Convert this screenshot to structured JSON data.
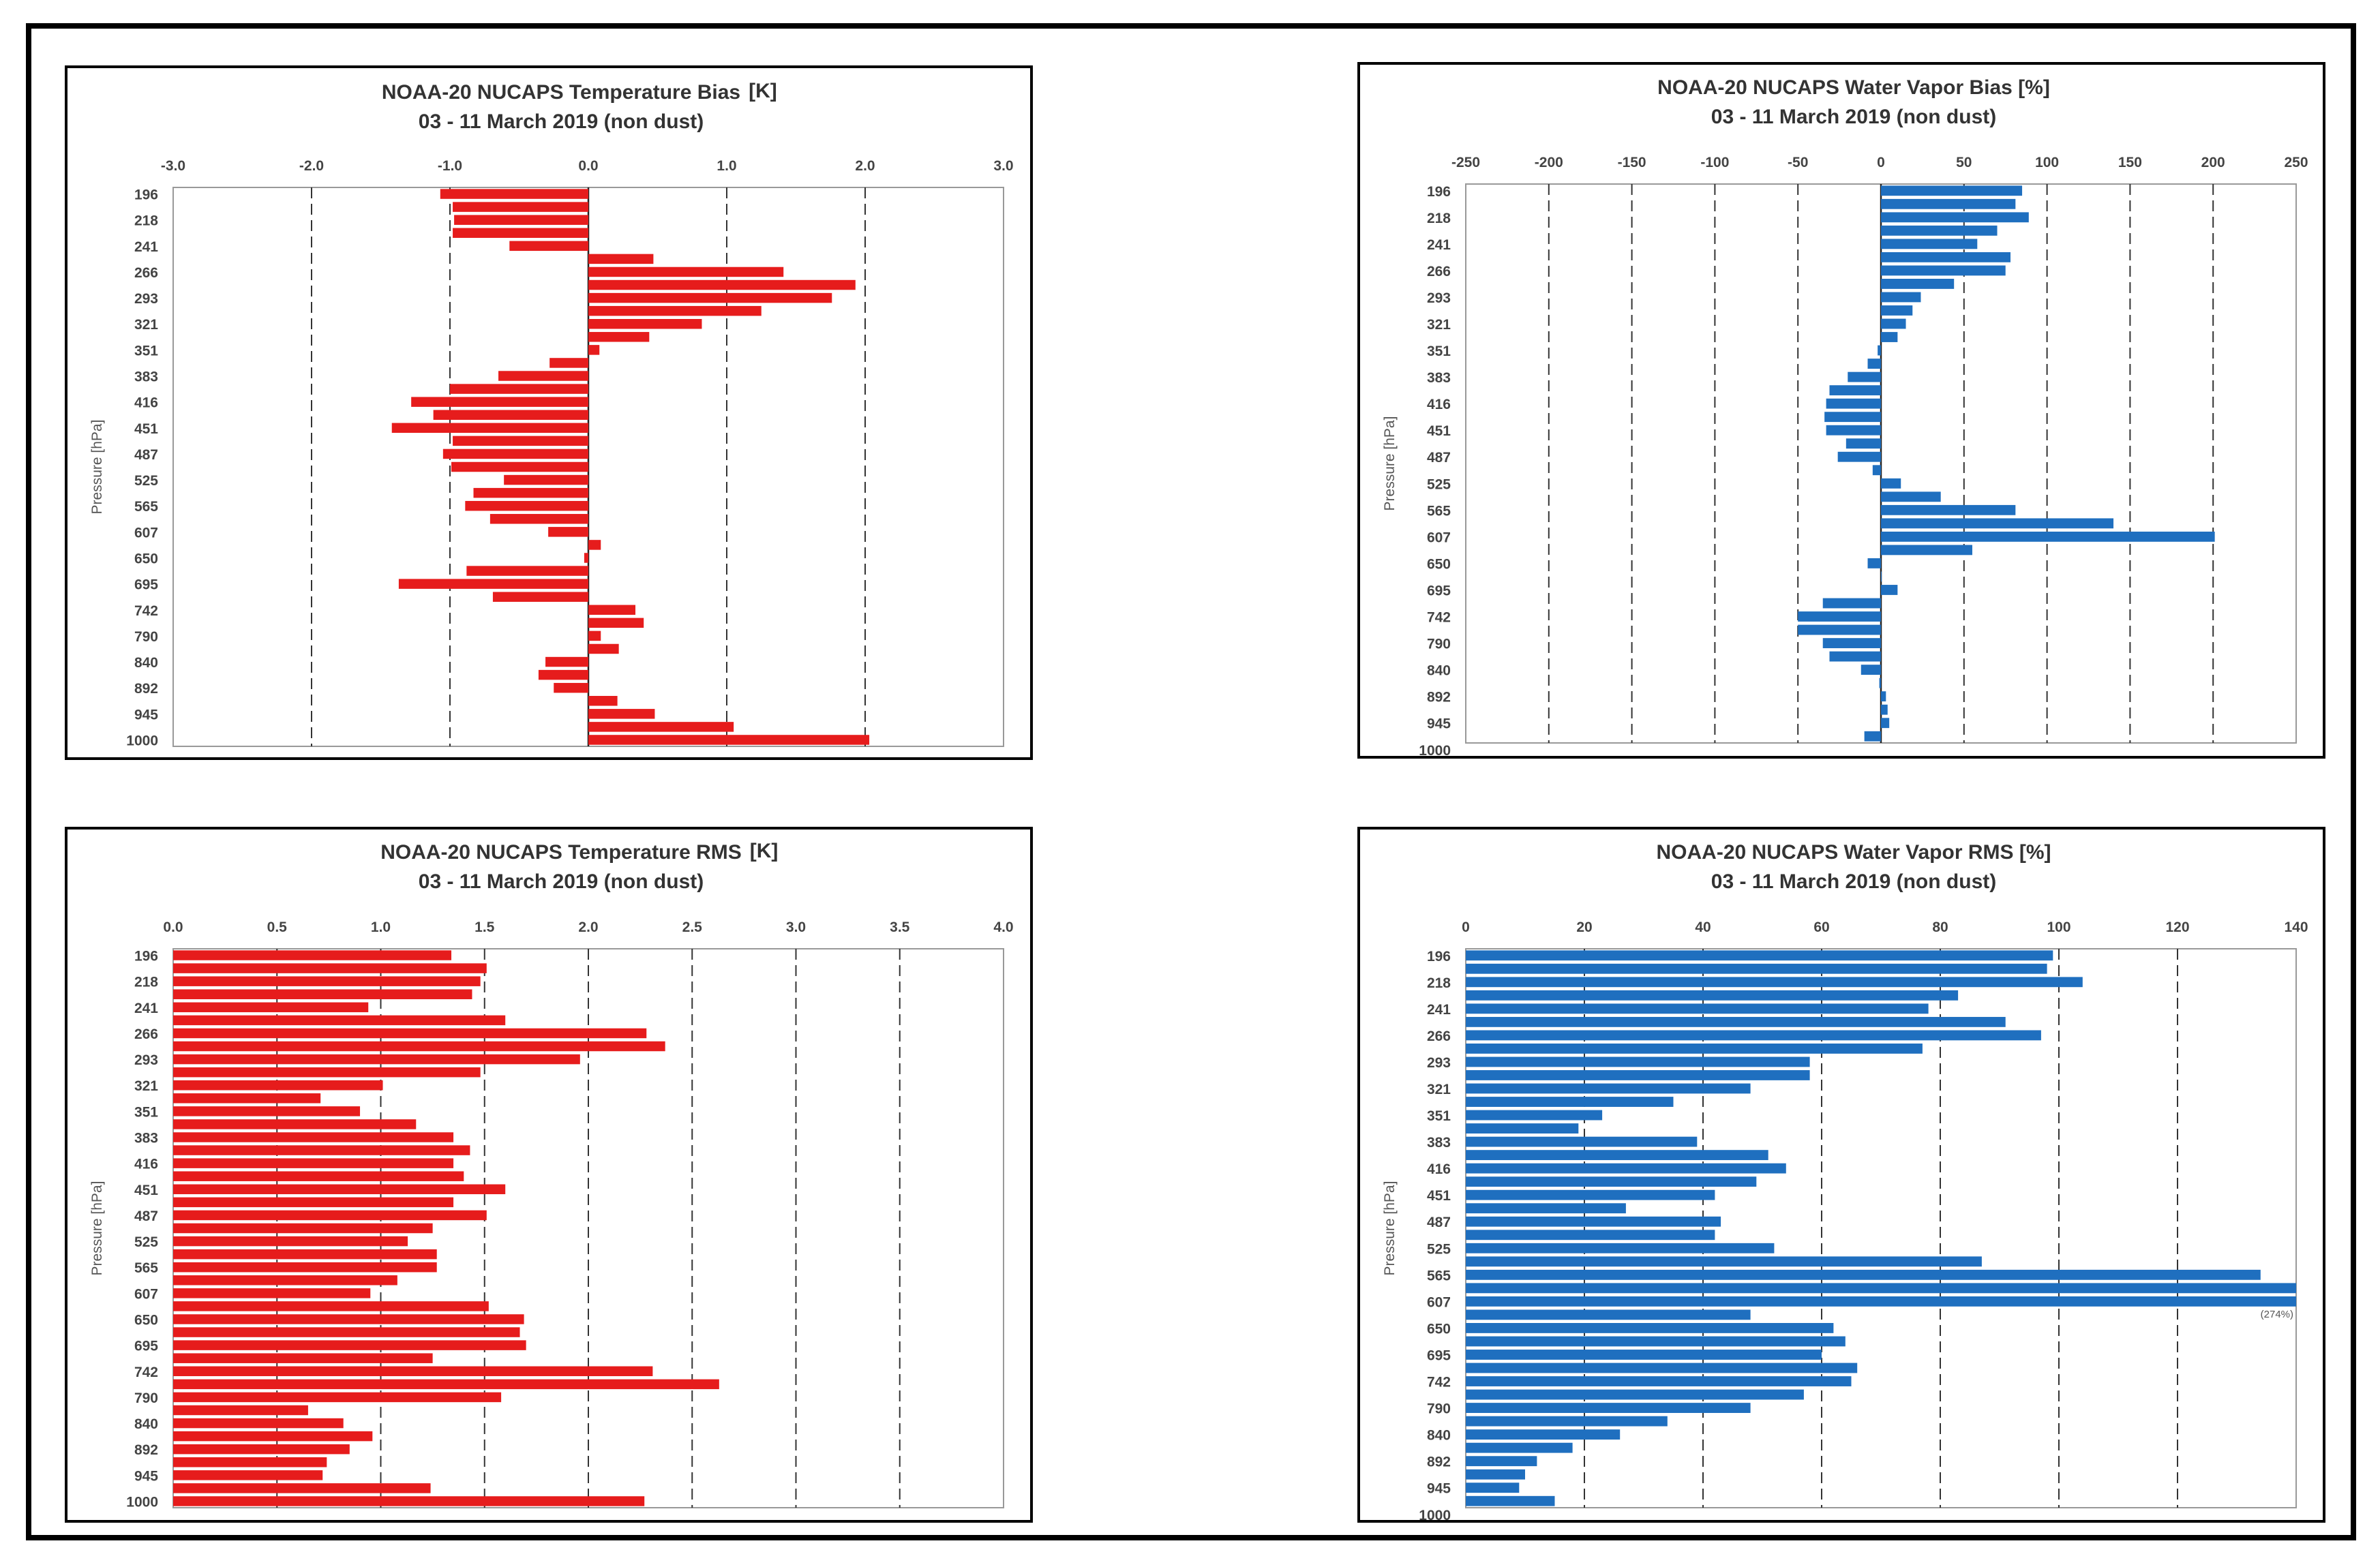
{
  "charts": [
    {
      "title": "NOAA-20 NUCAPS Temperature Bias",
      "title_unit": "[K]",
      "subtitle": "03 - 11 March 2019 (non dust)",
      "color": "#e61c1c"
    },
    {
      "title": "NOAA-20 NUCAPS Water Vapor Bias [%]",
      "title_unit": "",
      "subtitle": "03 - 11 March 2019 (non dust)",
      "color": "#1f6fbf"
    },
    {
      "title": "NOAA-20 NUCAPS Temperature RMS",
      "title_unit": "[K]",
      "subtitle": "03 - 11 March 2019 (non dust)",
      "color": "#e61c1c"
    },
    {
      "title": "NOAA-20 NUCAPS Water Vapor RMS [%]",
      "title_unit": "",
      "subtitle": "03 - 11 March 2019 (non dust)",
      "color": "#1f6fbf"
    }
  ],
  "chart_data": [
    {
      "type": "bar",
      "orientation": "horizontal",
      "title": "NOAA-20 NUCAPS Temperature Bias [K]",
      "subtitle": "03 - 11 March 2019 (non dust)",
      "ylabel": "Pressure [hPa]",
      "xlabel": "",
      "xlim": [
        -3.0,
        3.0
      ],
      "xticks": [
        "-3.0",
        "-2.0",
        "-1.0",
        "0.0",
        "1.0",
        "2.0",
        "3.0"
      ],
      "ytick_labels": [
        "196",
        "218",
        "241",
        "266",
        "293",
        "321",
        "351",
        "383",
        "416",
        "451",
        "487",
        "525",
        "565",
        "607",
        "650",
        "695",
        "742",
        "790",
        "840",
        "892",
        "945",
        "1000"
      ],
      "grid": "vertical dashed",
      "color": "#e61c1c",
      "values": [
        -1.07,
        -0.98,
        -0.97,
        -0.98,
        -0.57,
        0.47,
        1.41,
        1.93,
        1.76,
        1.25,
        0.82,
        0.44,
        0.08,
        -0.28,
        -0.65,
        -1.0,
        -1.28,
        -1.12,
        -1.42,
        -0.98,
        -1.05,
        -0.99,
        -0.61,
        -0.83,
        -0.89,
        -0.71,
        -0.29,
        0.09,
        -0.03,
        -0.88,
        -1.37,
        -0.69,
        0.34,
        0.4,
        0.09,
        0.22,
        -0.31,
        -0.36,
        -0.25,
        0.21,
        0.48,
        1.05,
        2.03
      ]
    },
    {
      "type": "bar",
      "orientation": "horizontal",
      "title": "NOAA-20 NUCAPS Water Vapor Bias [%]",
      "subtitle": "03 - 11 March 2019 (non dust)",
      "ylabel": "Pressure [hPa]",
      "xlabel": "",
      "xlim": [
        -250,
        250
      ],
      "xticks": [
        "-250",
        "-200",
        "-150",
        "-100",
        "-50",
        "0",
        "50",
        "100",
        "150",
        "200",
        "250"
      ],
      "ytick_labels": [
        "196",
        "218",
        "241",
        "266",
        "293",
        "321",
        "351",
        "383",
        "416",
        "451",
        "487",
        "525",
        "565",
        "607",
        "650",
        "695",
        "742",
        "790",
        "840",
        "892",
        "945",
        "1000"
      ],
      "grid": "vertical dashed",
      "color": "#1f6fbf",
      "values": [
        85,
        81,
        89,
        70,
        58,
        78,
        75,
        44,
        24,
        19,
        15,
        10,
        -2,
        -8,
        -20,
        -31,
        -33,
        -34,
        -33,
        -21,
        -26,
        -5,
        12,
        36,
        81,
        140,
        201,
        55,
        -8,
        0,
        10,
        -35,
        -50,
        -50,
        -35,
        -31,
        -12,
        -1,
        3,
        4,
        5,
        -10
      ]
    },
    {
      "type": "bar",
      "orientation": "horizontal",
      "title": "NOAA-20 NUCAPS Temperature RMS [K]",
      "subtitle": "03 - 11 March 2019 (non dust)",
      "ylabel": "Pressure [hPa]",
      "xlabel": "",
      "xlim": [
        0.0,
        4.0
      ],
      "xticks": [
        "0.0",
        "0.5",
        "1.0",
        "1.5",
        "2.0",
        "2.5",
        "3.0",
        "3.5",
        "4.0"
      ],
      "ytick_labels": [
        "196",
        "218",
        "241",
        "266",
        "293",
        "321",
        "351",
        "383",
        "416",
        "451",
        "487",
        "525",
        "565",
        "607",
        "650",
        "695",
        "742",
        "790",
        "840",
        "892",
        "945",
        "1000"
      ],
      "grid": "vertical dashed",
      "color": "#e61c1c",
      "values": [
        1.34,
        1.51,
        1.48,
        1.44,
        0.94,
        1.6,
        2.28,
        2.37,
        1.96,
        1.48,
        1.01,
        0.71,
        0.9,
        1.17,
        1.35,
        1.43,
        1.35,
        1.4,
        1.6,
        1.35,
        1.51,
        1.25,
        1.13,
        1.27,
        1.27,
        1.08,
        0.95,
        1.52,
        1.69,
        1.67,
        1.7,
        1.25,
        2.31,
        2.63,
        1.58,
        0.65,
        0.82,
        0.96,
        0.85,
        0.74,
        0.72,
        1.24,
        2.27
      ]
    },
    {
      "type": "bar",
      "orientation": "horizontal",
      "title": "NOAA-20 NUCAPS Water Vapor RMS [%]",
      "subtitle": "03 - 11 March 2019 (non dust)",
      "ylabel": "Pressure [hPa]",
      "xlabel": "",
      "xlim": [
        0,
        140
      ],
      "xticks": [
        "0",
        "20",
        "40",
        "60",
        "80",
        "100",
        "120",
        "140"
      ],
      "ytick_labels": [
        "196",
        "218",
        "241",
        "266",
        "293",
        "321",
        "351",
        "383",
        "416",
        "451",
        "487",
        "525",
        "565",
        "607",
        "650",
        "695",
        "742",
        "790",
        "840",
        "892",
        "945",
        "1000"
      ],
      "grid": "vertical dashed",
      "color": "#1f6fbf",
      "values": [
        99,
        98,
        104,
        83,
        78,
        91,
        97,
        77,
        58,
        58,
        48,
        35,
        23,
        19,
        39,
        51,
        54,
        49,
        42,
        27,
        43,
        42,
        52,
        87,
        134,
        140,
        140,
        48,
        62,
        64,
        60,
        66,
        65,
        57,
        48,
        34,
        26,
        18,
        12,
        10,
        9,
        15
      ],
      "annotation": "(274%)"
    }
  ]
}
